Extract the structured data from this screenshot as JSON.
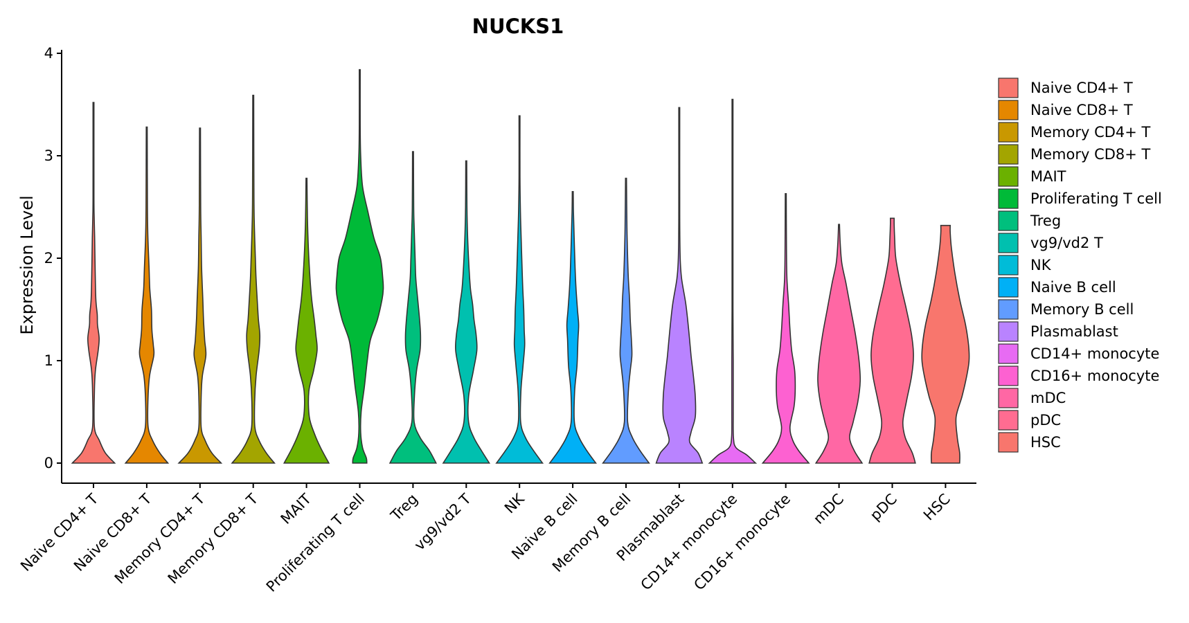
{
  "chart_data": {
    "type": "violin",
    "title": "NUCKS1",
    "xlabel": "",
    "ylabel": "Expression Level",
    "ylim": [
      0,
      4
    ],
    "yticks": [
      "0",
      "1",
      "2",
      "3",
      "4"
    ],
    "grid": false,
    "legend_position": "right",
    "series": [
      {
        "name": "Naive CD4+ T",
        "color": "#F8766D",
        "max": 3.52,
        "profile": [
          [
            0,
            0.9
          ],
          [
            0.1,
            0.5
          ],
          [
            0.22,
            0.25
          ],
          [
            0.35,
            0.04
          ],
          [
            0.7,
            0.04
          ],
          [
            0.9,
            0.08
          ],
          [
            1.1,
            0.2
          ],
          [
            1.22,
            0.24
          ],
          [
            1.35,
            0.17
          ],
          [
            1.45,
            0.16
          ],
          [
            1.6,
            0.1
          ],
          [
            1.9,
            0.07
          ],
          [
            2.2,
            0.05
          ],
          [
            2.4,
            0.03
          ],
          [
            2.6,
            0.02
          ],
          [
            3.52,
            0.02
          ]
        ]
      },
      {
        "name": "Naive CD8+ T",
        "color": "#E58700",
        "max": 3.28,
        "profile": [
          [
            0,
            0.9
          ],
          [
            0.1,
            0.55
          ],
          [
            0.22,
            0.25
          ],
          [
            0.35,
            0.06
          ],
          [
            0.6,
            0.05
          ],
          [
            0.85,
            0.12
          ],
          [
            1.05,
            0.3
          ],
          [
            1.15,
            0.28
          ],
          [
            1.3,
            0.22
          ],
          [
            1.5,
            0.2
          ],
          [
            1.7,
            0.13
          ],
          [
            1.9,
            0.1
          ],
          [
            2.2,
            0.05
          ],
          [
            2.5,
            0.03
          ],
          [
            3.28,
            0.02
          ]
        ]
      },
      {
        "name": "Memory CD4+ T",
        "color": "#C99800",
        "max": 3.27,
        "profile": [
          [
            0,
            0.9
          ],
          [
            0.1,
            0.5
          ],
          [
            0.22,
            0.22
          ],
          [
            0.35,
            0.05
          ],
          [
            0.65,
            0.05
          ],
          [
            0.85,
            0.1
          ],
          [
            1.05,
            0.25
          ],
          [
            1.2,
            0.2
          ],
          [
            1.4,
            0.15
          ],
          [
            1.6,
            0.12
          ],
          [
            1.9,
            0.07
          ],
          [
            2.2,
            0.05
          ],
          [
            2.5,
            0.03
          ],
          [
            3.27,
            0.02
          ]
        ]
      },
      {
        "name": "Memory CD8+ T",
        "color": "#A3A500",
        "max": 3.59,
        "profile": [
          [
            0,
            0.9
          ],
          [
            0.1,
            0.55
          ],
          [
            0.22,
            0.25
          ],
          [
            0.35,
            0.07
          ],
          [
            0.6,
            0.06
          ],
          [
            0.85,
            0.12
          ],
          [
            1.1,
            0.25
          ],
          [
            1.25,
            0.28
          ],
          [
            1.4,
            0.22
          ],
          [
            1.55,
            0.18
          ],
          [
            1.8,
            0.12
          ],
          [
            2.0,
            0.09
          ],
          [
            2.3,
            0.05
          ],
          [
            2.6,
            0.03
          ],
          [
            3.59,
            0.02
          ]
        ]
      },
      {
        "name": "MAIT",
        "color": "#6BB100",
        "max": 2.78,
        "profile": [
          [
            0,
            0.95
          ],
          [
            0.15,
            0.6
          ],
          [
            0.28,
            0.35
          ],
          [
            0.45,
            0.12
          ],
          [
            0.7,
            0.1
          ],
          [
            0.9,
            0.3
          ],
          [
            1.1,
            0.45
          ],
          [
            1.25,
            0.4
          ],
          [
            1.4,
            0.33
          ],
          [
            1.6,
            0.22
          ],
          [
            1.8,
            0.15
          ],
          [
            2.1,
            0.08
          ],
          [
            2.4,
            0.04
          ],
          [
            2.78,
            0.02
          ]
        ]
      },
      {
        "name": "Proliferating T cell",
        "color": "#00BA38",
        "max": 3.84,
        "profile": [
          [
            0,
            0.3
          ],
          [
            0.05,
            0.28
          ],
          [
            0.15,
            0.12
          ],
          [
            0.3,
            0.04
          ],
          [
            0.5,
            0.06
          ],
          [
            0.75,
            0.2
          ],
          [
            1.0,
            0.32
          ],
          [
            1.2,
            0.45
          ],
          [
            1.4,
            0.75
          ],
          [
            1.6,
            0.95
          ],
          [
            1.7,
            1.0
          ],
          [
            1.8,
            0.98
          ],
          [
            2.0,
            0.88
          ],
          [
            2.2,
            0.6
          ],
          [
            2.45,
            0.35
          ],
          [
            2.7,
            0.12
          ],
          [
            3.0,
            0.04
          ],
          [
            3.3,
            0.02
          ],
          [
            3.84,
            0.02
          ]
        ]
      },
      {
        "name": "Treg",
        "color": "#00BF7D",
        "max": 3.04,
        "profile": [
          [
            0,
            0.98
          ],
          [
            0.12,
            0.7
          ],
          [
            0.25,
            0.3
          ],
          [
            0.4,
            0.05
          ],
          [
            0.65,
            0.06
          ],
          [
            0.9,
            0.15
          ],
          [
            1.1,
            0.3
          ],
          [
            1.25,
            0.32
          ],
          [
            1.4,
            0.28
          ],
          [
            1.6,
            0.2
          ],
          [
            1.8,
            0.12
          ],
          [
            2.0,
            0.09
          ],
          [
            2.3,
            0.05
          ],
          [
            2.5,
            0.03
          ],
          [
            3.04,
            0.02
          ]
        ]
      },
      {
        "name": "vg9/vd2 T",
        "color": "#00C0AF",
        "max": 2.95,
        "profile": [
          [
            0,
            0.98
          ],
          [
            0.12,
            0.65
          ],
          [
            0.25,
            0.32
          ],
          [
            0.4,
            0.1
          ],
          [
            0.65,
            0.1
          ],
          [
            0.9,
            0.3
          ],
          [
            1.1,
            0.45
          ],
          [
            1.25,
            0.42
          ],
          [
            1.4,
            0.33
          ],
          [
            1.55,
            0.27
          ],
          [
            1.7,
            0.18
          ],
          [
            1.9,
            0.12
          ],
          [
            2.2,
            0.06
          ],
          [
            2.5,
            0.03
          ],
          [
            2.95,
            0.02
          ]
        ]
      },
      {
        "name": "NK",
        "color": "#00BCD8",
        "max": 3.39,
        "profile": [
          [
            0,
            0.98
          ],
          [
            0.12,
            0.6
          ],
          [
            0.25,
            0.25
          ],
          [
            0.4,
            0.05
          ],
          [
            0.7,
            0.06
          ],
          [
            0.95,
            0.15
          ],
          [
            1.15,
            0.22
          ],
          [
            1.3,
            0.2
          ],
          [
            1.5,
            0.18
          ],
          [
            1.7,
            0.14
          ],
          [
            1.9,
            0.11
          ],
          [
            2.2,
            0.07
          ],
          [
            2.45,
            0.04
          ],
          [
            2.8,
            0.02
          ],
          [
            3.39,
            0.02
          ]
        ]
      },
      {
        "name": "Naive B cell",
        "color": "#00B0F6",
        "max": 2.65,
        "profile": [
          [
            0,
            0.98
          ],
          [
            0.12,
            0.6
          ],
          [
            0.25,
            0.27
          ],
          [
            0.4,
            0.07
          ],
          [
            0.7,
            0.08
          ],
          [
            0.95,
            0.18
          ],
          [
            1.2,
            0.22
          ],
          [
            1.35,
            0.25
          ],
          [
            1.5,
            0.2
          ],
          [
            1.7,
            0.14
          ],
          [
            1.9,
            0.1
          ],
          [
            2.2,
            0.06
          ],
          [
            2.45,
            0.03
          ],
          [
            2.65,
            0.02
          ]
        ]
      },
      {
        "name": "Memory B cell",
        "color": "#619CFF",
        "max": 2.78,
        "profile": [
          [
            0,
            0.98
          ],
          [
            0.12,
            0.6
          ],
          [
            0.25,
            0.27
          ],
          [
            0.4,
            0.07
          ],
          [
            0.7,
            0.1
          ],
          [
            0.9,
            0.18
          ],
          [
            1.05,
            0.25
          ],
          [
            1.2,
            0.23
          ],
          [
            1.4,
            0.18
          ],
          [
            1.6,
            0.15
          ],
          [
            1.8,
            0.1
          ],
          [
            2.0,
            0.07
          ],
          [
            2.3,
            0.04
          ],
          [
            2.78,
            0.02
          ]
        ]
      },
      {
        "name": "Plasmablast",
        "color": "#B983FF",
        "max": 3.47,
        "profile": [
          [
            0,
            0.98
          ],
          [
            0.1,
            0.8
          ],
          [
            0.2,
            0.45
          ],
          [
            0.3,
            0.5
          ],
          [
            0.45,
            0.68
          ],
          [
            0.65,
            0.68
          ],
          [
            0.85,
            0.6
          ],
          [
            1.05,
            0.5
          ],
          [
            1.3,
            0.4
          ],
          [
            1.55,
            0.28
          ],
          [
            1.8,
            0.1
          ],
          [
            2.0,
            0.04
          ],
          [
            2.4,
            0.02
          ],
          [
            3.47,
            0.02
          ]
        ]
      },
      {
        "name": "CD14+ monocyte",
        "color": "#E76BF3",
        "max": 3.55,
        "profile": [
          [
            0,
            0.98
          ],
          [
            0.08,
            0.6
          ],
          [
            0.15,
            0.15
          ],
          [
            0.25,
            0.04
          ],
          [
            0.5,
            0.03
          ],
          [
            1.0,
            0.03
          ],
          [
            1.5,
            0.02
          ],
          [
            3.55,
            0.02
          ]
        ]
      },
      {
        "name": "CD16+ monocyte",
        "color": "#FD61D1",
        "max": 2.63,
        "profile": [
          [
            0,
            0.98
          ],
          [
            0.12,
            0.55
          ],
          [
            0.22,
            0.3
          ],
          [
            0.35,
            0.18
          ],
          [
            0.55,
            0.35
          ],
          [
            0.7,
            0.4
          ],
          [
            0.9,
            0.38
          ],
          [
            1.1,
            0.25
          ],
          [
            1.3,
            0.18
          ],
          [
            1.55,
            0.12
          ],
          [
            1.8,
            0.05
          ],
          [
            2.1,
            0.03
          ],
          [
            2.63,
            0.02
          ]
        ]
      },
      {
        "name": "mDC",
        "color": "#FF67A4",
        "max": 2.33,
        "profile": [
          [
            0,
            0.98
          ],
          [
            0.12,
            0.65
          ],
          [
            0.25,
            0.45
          ],
          [
            0.4,
            0.6
          ],
          [
            0.6,
            0.8
          ],
          [
            0.8,
            0.9
          ],
          [
            1.0,
            0.85
          ],
          [
            1.25,
            0.7
          ],
          [
            1.5,
            0.5
          ],
          [
            1.75,
            0.3
          ],
          [
            1.95,
            0.12
          ],
          [
            2.15,
            0.05
          ],
          [
            2.33,
            0.02
          ]
        ]
      },
      {
        "name": "pDC",
        "color": "#FF6C91",
        "max": 2.39,
        "profile": [
          [
            0,
            0.98
          ],
          [
            0.1,
            0.85
          ],
          [
            0.25,
            0.55
          ],
          [
            0.4,
            0.45
          ],
          [
            0.6,
            0.6
          ],
          [
            0.85,
            0.82
          ],
          [
            1.05,
            0.9
          ],
          [
            1.25,
            0.82
          ],
          [
            1.5,
            0.6
          ],
          [
            1.75,
            0.35
          ],
          [
            2.0,
            0.15
          ],
          [
            2.2,
            0.1
          ],
          [
            2.33,
            0.08
          ],
          [
            2.39,
            0.08
          ]
        ]
      },
      {
        "name": "HSC",
        "color": "#F8766D",
        "max": 2.32,
        "profile": [
          [
            0,
            0.6
          ],
          [
            0.1,
            0.6
          ],
          [
            0.25,
            0.5
          ],
          [
            0.45,
            0.45
          ],
          [
            0.65,
            0.7
          ],
          [
            0.85,
            0.9
          ],
          [
            1.0,
            1.0
          ],
          [
            1.15,
            0.98
          ],
          [
            1.35,
            0.85
          ],
          [
            1.6,
            0.6
          ],
          [
            1.85,
            0.4
          ],
          [
            2.1,
            0.25
          ],
          [
            2.25,
            0.2
          ],
          [
            2.32,
            0.2
          ]
        ]
      }
    ]
  }
}
